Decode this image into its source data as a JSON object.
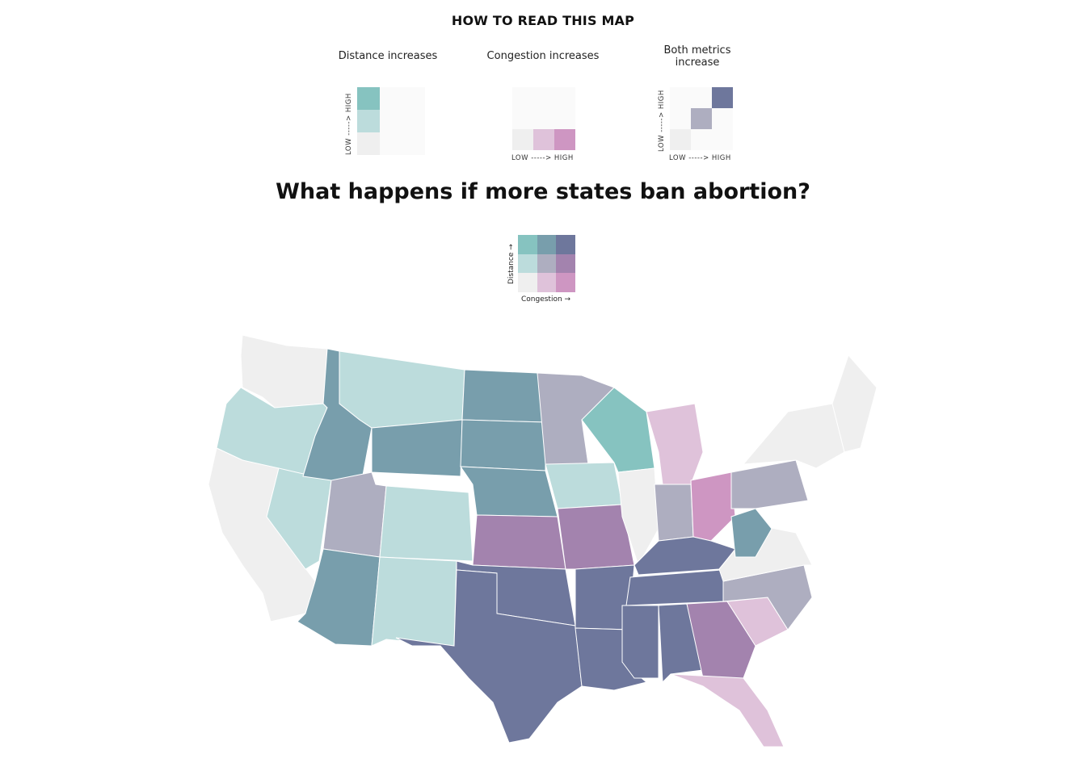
{
  "header": {
    "how_to_read": "HOW TO READ THIS MAP",
    "examples": [
      {
        "label": "Distance increases",
        "y_axis": "LOW -----> HIGH",
        "x_axis": ""
      },
      {
        "label": "Congestion increases",
        "y_axis": "",
        "x_axis": "LOW -----> HIGH"
      },
      {
        "label": "Both metrics increase",
        "y_axis": "LOW -----> HIGH",
        "x_axis": "LOW -----> HIGH"
      }
    ]
  },
  "title": "What happens if more states ban abortion?",
  "legend": {
    "x_label": "Congestion →",
    "y_label": "Distance →",
    "colors": {
      "low_low": "#efefef",
      "low_mid_cong": "#dfc2da",
      "low_high_cong": "#ce96c2",
      "mid_dist_low": "#bcdcdc",
      "mid_mid": "#aeaec0",
      "mid_high_cong": "#a383ae",
      "high_dist_low": "#86c3c0",
      "high_dist_mid": "#789eac",
      "high_high": "#6e779c",
      "empty": "#fafafa"
    }
  },
  "map": {
    "type": "bivariate-choropleth",
    "variables": [
      "Congestion",
      "Distance"
    ],
    "states": [
      {
        "name": "WA",
        "class": "low_low"
      },
      {
        "name": "OR",
        "class": "mid_dist_low"
      },
      {
        "name": "CA",
        "class": "low_low"
      },
      {
        "name": "NV",
        "class": "mid_dist_low"
      },
      {
        "name": "ID",
        "class": "high_dist_mid"
      },
      {
        "name": "MT",
        "class": "mid_dist_low"
      },
      {
        "name": "WY",
        "class": "high_dist_mid"
      },
      {
        "name": "UT",
        "class": "mid_mid"
      },
      {
        "name": "AZ",
        "class": "high_dist_mid"
      },
      {
        "name": "CO",
        "class": "mid_dist_low"
      },
      {
        "name": "NM",
        "class": "mid_dist_low"
      },
      {
        "name": "ND",
        "class": "high_dist_mid"
      },
      {
        "name": "SD",
        "class": "high_dist_mid"
      },
      {
        "name": "NE",
        "class": "high_dist_mid"
      },
      {
        "name": "KS",
        "class": "mid_high_cong"
      },
      {
        "name": "OK",
        "class": "high_high"
      },
      {
        "name": "TX",
        "class": "high_high"
      },
      {
        "name": "MN",
        "class": "mid_mid"
      },
      {
        "name": "IA",
        "class": "mid_dist_low"
      },
      {
        "name": "MO",
        "class": "mid_high_cong"
      },
      {
        "name": "AR",
        "class": "high_high"
      },
      {
        "name": "LA",
        "class": "high_high"
      },
      {
        "name": "WI",
        "class": "high_dist_low"
      },
      {
        "name": "IL",
        "class": "low_low"
      },
      {
        "name": "MI",
        "class": "low_mid_cong"
      },
      {
        "name": "IN",
        "class": "mid_mid"
      },
      {
        "name": "OH",
        "class": "low_high_cong"
      },
      {
        "name": "KY",
        "class": "high_high"
      },
      {
        "name": "TN",
        "class": "high_high"
      },
      {
        "name": "MS",
        "class": "high_high"
      },
      {
        "name": "AL",
        "class": "high_high"
      },
      {
        "name": "GA",
        "class": "mid_high_cong"
      },
      {
        "name": "FL",
        "class": "low_mid_cong"
      },
      {
        "name": "SC",
        "class": "low_mid_cong"
      },
      {
        "name": "NC",
        "class": "mid_mid"
      },
      {
        "name": "VA",
        "class": "low_low"
      },
      {
        "name": "WV",
        "class": "high_dist_mid"
      },
      {
        "name": "PA",
        "class": "mid_mid"
      },
      {
        "name": "NY",
        "class": "low_low"
      },
      {
        "name": "NE_states",
        "class": "low_low"
      }
    ]
  }
}
